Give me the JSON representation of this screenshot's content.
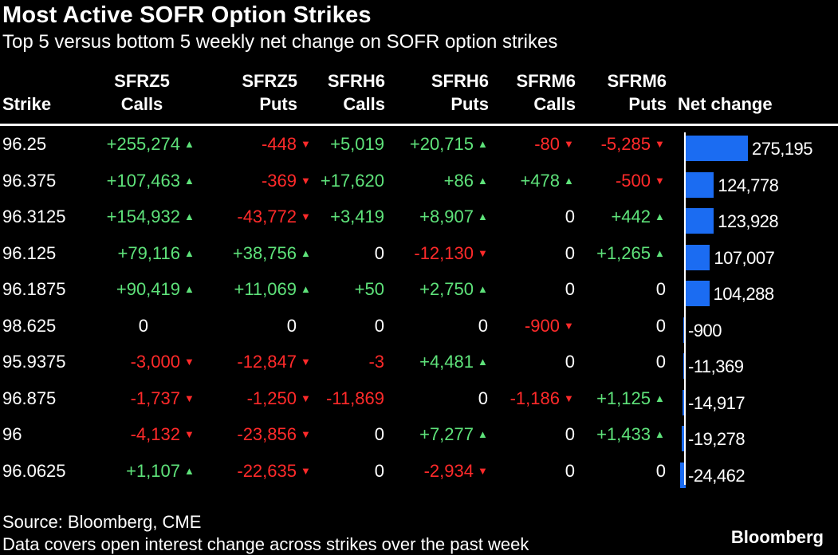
{
  "title": "Most Active SOFR Option Strikes",
  "subtitle": "Top 5 versus bottom 5 weekly net change on SOFR option strikes",
  "headers": {
    "strike": "Strike",
    "sfrz5_calls": [
      "SFRZ5",
      "Calls"
    ],
    "sfrz5_puts": [
      "SFRZ5",
      "Puts"
    ],
    "sfrh6_calls": [
      "SFRH6",
      "Calls"
    ],
    "sfrh6_puts": [
      "SFRH6",
      "Puts"
    ],
    "sfrm6_calls": [
      "SFRM6",
      "Calls"
    ],
    "sfrm6_puts": [
      "SFRM6",
      "Puts"
    ],
    "net_change": "Net change"
  },
  "colors": {
    "positive": "#5ee27a",
    "negative": "#ff2a2a",
    "bar": "#1b6cf2",
    "background": "#000000"
  },
  "icons": {
    "up": "up-triangle-icon",
    "down": "down-triangle-icon"
  },
  "rows": [
    {
      "strike": "96.25",
      "cells": [
        "+255,274",
        "-448",
        "+5,019",
        "+20,715",
        "-80",
        "-5,285"
      ],
      "net_label": "275,195"
    },
    {
      "strike": "96.375",
      "cells": [
        "+107,463",
        "-369",
        "+17,620",
        "+86",
        "+478",
        "-500"
      ],
      "net_label": "124,778"
    },
    {
      "strike": "96.3125",
      "cells": [
        "+154,932",
        "-43,772",
        "+3,419",
        "+8,907",
        "0",
        "+442"
      ],
      "net_label": "123,928"
    },
    {
      "strike": "96.125",
      "cells": [
        "+79,116",
        "+38,756",
        "0",
        "-12,130",
        "0",
        "+1,265"
      ],
      "net_label": "107,007"
    },
    {
      "strike": "96.1875",
      "cells": [
        "+90,419",
        "+11,069",
        "+50",
        "+2,750",
        "0",
        "0"
      ],
      "net_label": "104,288"
    },
    {
      "strike": "98.625",
      "cells": [
        "0",
        "0",
        "0",
        "0",
        "-900",
        "0"
      ],
      "net_label": "-900"
    },
    {
      "strike": "95.9375",
      "cells": [
        "-3,000",
        "-12,847",
        "-3",
        "+4,481",
        "0",
        "0"
      ],
      "net_label": "-11,369"
    },
    {
      "strike": "96.875",
      "cells": [
        "-1,737",
        "-1,250",
        "-11,869",
        "0",
        "-1,186",
        "+1,125"
      ],
      "net_label": "-14,917"
    },
    {
      "strike": "96",
      "cells": [
        "-4,132",
        "-23,856",
        "0",
        "+7,277",
        "0",
        "+1,433"
      ],
      "net_label": "-19,278"
    },
    {
      "strike": "96.0625",
      "cells": [
        "+1,107",
        "-22,635",
        "0",
        "-2,934",
        "0",
        "0"
      ],
      "net_label": "-24,462"
    }
  ],
  "arrows": [
    [
      true,
      true,
      false,
      true,
      true,
      true
    ],
    [
      true,
      true,
      false,
      true,
      true,
      true
    ],
    [
      true,
      true,
      false,
      true,
      false,
      true
    ],
    [
      true,
      true,
      false,
      true,
      false,
      true
    ],
    [
      true,
      true,
      false,
      true,
      false,
      false
    ],
    [
      false,
      false,
      false,
      false,
      true,
      false
    ],
    [
      true,
      true,
      false,
      true,
      false,
      false
    ],
    [
      true,
      true,
      false,
      false,
      true,
      true
    ],
    [
      true,
      true,
      false,
      true,
      false,
      true
    ],
    [
      true,
      true,
      false,
      true,
      false,
      false
    ]
  ],
  "chart_data": {
    "type": "bar",
    "categories": [
      "96.25",
      "96.375",
      "96.3125",
      "96.125",
      "96.1875",
      "98.625",
      "95.9375",
      "96.875",
      "96",
      "96.0625"
    ],
    "values": [
      275195,
      124778,
      123928,
      107007,
      104288,
      -900,
      -11369,
      -14917,
      -19278,
      -24462
    ],
    "ylabel": "Net change"
  },
  "footer": {
    "source": "Source: Bloomberg, CME",
    "note": "Data covers open interest change across strikes over the past week",
    "brand": "Bloomberg"
  }
}
